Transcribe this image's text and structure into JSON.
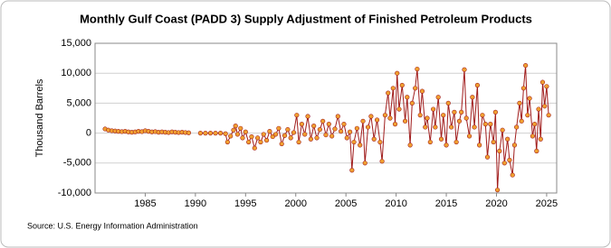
{
  "chart_data": {
    "type": "line",
    "title": "Monthly Gulf Coast (PADD 3) Supply Adjustment of Finished Petroleum Products",
    "y_label": "Thousand Barrels",
    "source": "Source: U.S. Energy Information Administration",
    "x": [
      1981.0,
      1981.33,
      1981.67,
      1982.0,
      1982.33,
      1982.67,
      1983.0,
      1983.33,
      1983.67,
      1984.0,
      1984.33,
      1984.67,
      1985.0,
      1985.33,
      1985.67,
      1986.0,
      1986.33,
      1986.67,
      1987.0,
      1987.33,
      1987.67,
      1988.0,
      1988.33,
      1988.67,
      1989.0,
      1989.33,
      1990.0,
      1990.5,
      1991.0,
      1991.5,
      1992.0,
      1992.5,
      1993.0,
      1993.2,
      1993.5,
      1993.8,
      1994.0,
      1994.2,
      1994.5,
      1994.7,
      1995.0,
      1995.3,
      1995.6,
      1995.9,
      1996.2,
      1996.5,
      1996.8,
      1997.1,
      1997.4,
      1997.7,
      1998.0,
      1998.3,
      1998.6,
      1998.9,
      1999.2,
      1999.5,
      1999.8,
      2000.1,
      2000.3,
      2000.6,
      2000.9,
      2001.2,
      2001.5,
      2001.8,
      2002.1,
      2002.4,
      2002.7,
      2003.0,
      2003.3,
      2003.6,
      2003.9,
      2004.2,
      2004.5,
      2004.8,
      2005.1,
      2005.4,
      2005.6,
      2005.8,
      2006.1,
      2006.4,
      2006.7,
      2006.9,
      2007.2,
      2007.5,
      2007.8,
      2008.1,
      2008.4,
      2008.6,
      2008.9,
      2009.2,
      2009.4,
      2009.7,
      2009.9,
      2010.1,
      2010.3,
      2010.6,
      2010.9,
      2011.1,
      2011.4,
      2011.6,
      2011.9,
      2012.1,
      2012.4,
      2012.6,
      2012.9,
      2013.1,
      2013.4,
      2013.7,
      2013.9,
      2014.2,
      2014.5,
      2014.7,
      2015.0,
      2015.2,
      2015.5,
      2015.8,
      2016.0,
      2016.3,
      2016.5,
      2016.8,
      2017.0,
      2017.3,
      2017.6,
      2017.8,
      2018.1,
      2018.3,
      2018.6,
      2018.9,
      2019.1,
      2019.4,
      2019.7,
      2019.9,
      2020.1,
      2020.3,
      2020.6,
      2020.8,
      2021.1,
      2021.3,
      2021.6,
      2021.8,
      2022.0,
      2022.3,
      2022.5,
      2022.7,
      2022.9,
      2023.1,
      2023.3,
      2023.6,
      2023.8,
      2024.0,
      2024.2,
      2024.4,
      2024.6,
      2024.8,
      2025.0,
      2025.2
    ],
    "series": [
      {
        "name": "Supply Adjustment",
        "color": "#a01c1c",
        "marker_color": "#f0a030",
        "values": [
          700,
          500,
          400,
          350,
          300,
          250,
          300,
          200,
          150,
          200,
          300,
          250,
          400,
          300,
          200,
          250,
          150,
          200,
          150,
          100,
          200,
          150,
          100,
          150,
          100,
          50,
          null,
          0,
          0,
          0,
          0,
          0,
          -100,
          -1500,
          -500,
          500,
          1200,
          -200,
          800,
          -800,
          200,
          -1500,
          -600,
          -2500,
          -800,
          -1500,
          -200,
          -1200,
          300,
          -600,
          -200,
          800,
          -1800,
          -400,
          600,
          -800,
          100,
          3000,
          -1500,
          1500,
          -200,
          2800,
          -1000,
          1200,
          -800,
          600,
          2000,
          -300,
          1500,
          -500,
          700,
          2800,
          300,
          1500,
          -800,
          200,
          -6200,
          -1500,
          800,
          -2000,
          2000,
          -5000,
          1000,
          2800,
          -1000,
          2200,
          -1500,
          -4700,
          3000,
          6700,
          2500,
          7500,
          1500,
          10000,
          4000,
          8000,
          2000,
          6000,
          -2000,
          5000,
          7500,
          10700,
          3000,
          7000,
          1000,
          2500,
          -1500,
          4000,
          1000,
          6000,
          -1000,
          3000,
          -2000,
          5000,
          1000,
          3500,
          -1500,
          2000,
          3500,
          10600,
          2500,
          -500,
          6000,
          1000,
          8000,
          -2000,
          3000,
          1500,
          -4000,
          1500,
          -1500,
          3500,
          -9500,
          -3000,
          500,
          -5000,
          -1000,
          -4500,
          -7000,
          -2000,
          1000,
          5000,
          2000,
          7500,
          11300,
          3000,
          5800,
          -500,
          1500,
          -3000,
          4000,
          -1000,
          8500,
          4500,
          7800,
          3000
        ]
      }
    ],
    "xlim": [
      1980,
      2026
    ],
    "xticks": [
      1985,
      1990,
      1995,
      2000,
      2005,
      2010,
      2015,
      2020,
      2025
    ],
    "ylim": [
      -10000,
      15000
    ],
    "yticks": [
      {
        "value": -10000,
        "label": "-10,000"
      },
      {
        "value": -5000,
        "label": "-5,000"
      },
      0,
      {
        "value": 5000,
        "label": "5,000"
      },
      {
        "value": 10000,
        "label": "10,000"
      },
      {
        "value": 15000,
        "label": "15,000"
      }
    ],
    "grid": true
  }
}
